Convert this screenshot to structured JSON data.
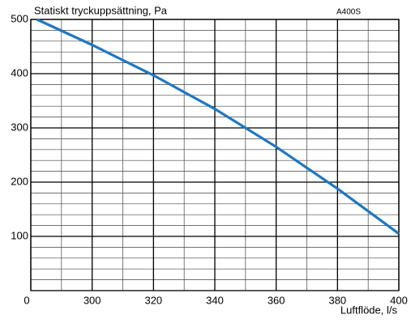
{
  "chart_data": {
    "type": "line",
    "title": "Statiskt tryckuppsättning, Pa",
    "annotation": "A400S",
    "x_label": "Luftflöde, l/s",
    "x": [
      282,
      300,
      320,
      340,
      360,
      380,
      400
    ],
    "series": [
      {
        "name": "A400S",
        "color": "#1f77c0",
        "values": [
          500,
          453,
          397,
          335,
          265,
          188,
          105
        ]
      }
    ],
    "xlim": [
      280,
      400
    ],
    "xticks": [
      {
        "value": 280,
        "label": "0"
      },
      300,
      320,
      340,
      360,
      380,
      400
    ],
    "ylim": [
      0,
      500
    ],
    "yticks": [
      100,
      200,
      300,
      400,
      500
    ],
    "minor_xticks": [
      290,
      310,
      330,
      350,
      370,
      390
    ],
    "minor_yticks": [
      20,
      40,
      60,
      80,
      120,
      140,
      160,
      180,
      220,
      240,
      260,
      280,
      320,
      340,
      360,
      380,
      420,
      440,
      460,
      480
    ],
    "grid": true
  }
}
